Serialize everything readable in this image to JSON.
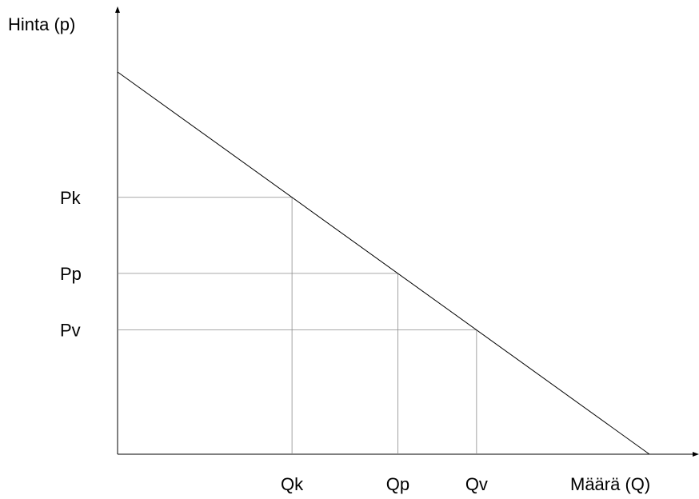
{
  "chart_data": {
    "type": "line",
    "xlabel": "Määrä (Q)",
    "ylabel": "Hinta (p)",
    "xlim": [
      0,
      10
    ],
    "ylim": [
      0,
      10
    ],
    "grid": false,
    "demand_line": {
      "points": [
        {
          "x": 0,
          "y": 10
        },
        {
          "x": 10,
          "y": 0
        }
      ]
    },
    "points": [
      {
        "name": "k",
        "x_label": "Qk",
        "y_label": "Pk",
        "x": 3.28,
        "y": 6.72
      },
      {
        "name": "p",
        "x_label": "Qp",
        "y_label": "Pp",
        "x": 5.27,
        "y": 4.73
      },
      {
        "name": "v",
        "x_label": "Qv",
        "y_label": "Pv",
        "x": 6.75,
        "y": 3.25
      }
    ],
    "colors": {
      "axis": "#000000",
      "demand": "#000000",
      "guides": "#8c8c8c"
    }
  }
}
